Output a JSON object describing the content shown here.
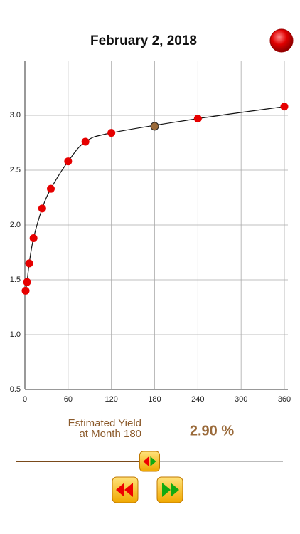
{
  "header": {
    "title": "February 2, 2018"
  },
  "chart_data": {
    "type": "line",
    "x": [
      1,
      3,
      6,
      12,
      24,
      36,
      60,
      84,
      120,
      240,
      360
    ],
    "series": [
      {
        "color": "#e60000",
        "values": [
          1.4,
          1.48,
          1.65,
          1.88,
          2.15,
          2.33,
          2.58,
          2.76,
          2.84,
          2.97,
          3.08
        ]
      }
    ],
    "xlim": [
      0,
      360
    ],
    "xticks": [
      0,
      60,
      120,
      180,
      240,
      300,
      360
    ],
    "ylim": [
      0.5,
      3.5
    ],
    "yticks": [
      {
        "value": 0.5,
        "label": "0.5"
      },
      {
        "value": 1,
        "label": "1.0"
      },
      {
        "value": 1.5,
        "label": "1.5"
      },
      {
        "value": 2,
        "label": "2.0"
      },
      {
        "value": 2.5,
        "label": "2.5"
      },
      {
        "value": 3,
        "label": "3.0"
      }
    ],
    "grid": true
  },
  "estimate": {
    "line1": "Estimated Yield",
    "line2": "at Month 180",
    "x": 180,
    "value": 2.9,
    "value_label": "2.90 %",
    "color": "#9a6a3a"
  }
}
